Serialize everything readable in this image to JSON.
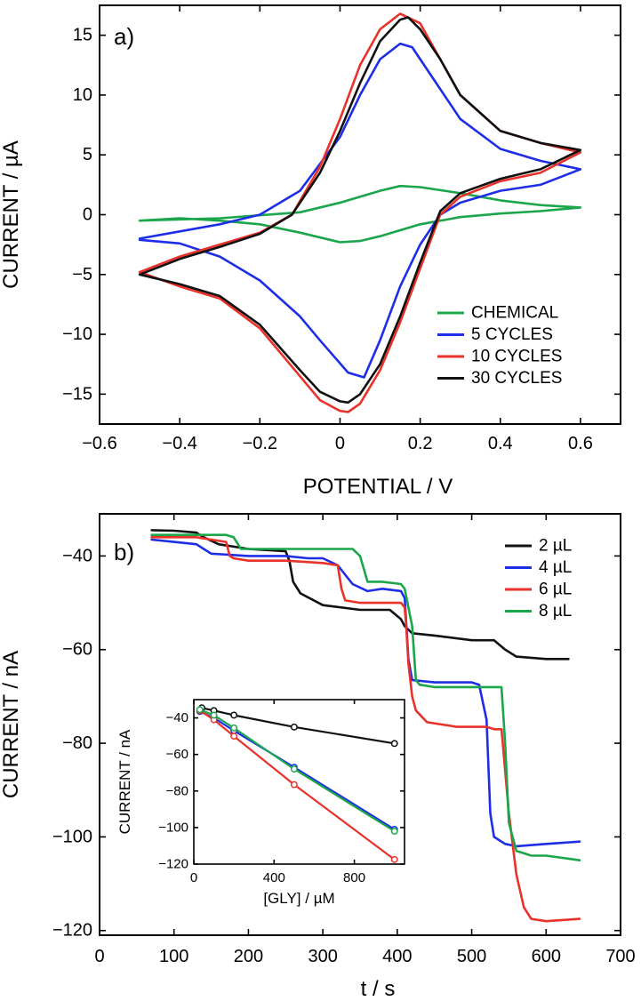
{
  "chart_data": [
    {
      "type": "line",
      "panel_label": "a)",
      "xlabel": "POTENTIAL / V",
      "ylabel": "CURRENT / µA",
      "xlim": [
        -0.6,
        0.7
      ],
      "ylim": [
        -17.5,
        17.5
      ],
      "xticks": [
        -0.6,
        -0.4,
        -0.2,
        0,
        0.2,
        0.4,
        0.6
      ],
      "yticks": [
        -15,
        -10,
        -5,
        0,
        5,
        10,
        15
      ],
      "xtick_labels": [
        "−0.6",
        "−0.4",
        "−0.2",
        "0",
        "0.2",
        "0.4",
        "0.6"
      ],
      "ytick_labels": [
        "−15",
        "−10",
        "−5",
        "0",
        "5",
        "10",
        "15"
      ],
      "legend_position": "lower-right",
      "series": [
        {
          "name": "CHEMICAL",
          "color": "#1ca64c",
          "x": [
            -0.5,
            -0.3,
            -0.1,
            0.0,
            0.1,
            0.15,
            0.2,
            0.3,
            0.4,
            0.5,
            0.6,
            0.5,
            0.4,
            0.3,
            0.2,
            0.1,
            0.05,
            0.0,
            -0.1,
            -0.2,
            -0.3,
            -0.4,
            -0.5
          ],
          "y": [
            -0.5,
            -0.3,
            0.2,
            1.0,
            2.0,
            2.4,
            2.3,
            1.8,
            1.2,
            0.8,
            0.6,
            0.3,
            0.1,
            -0.2,
            -0.8,
            -1.8,
            -2.2,
            -2.3,
            -1.5,
            -0.8,
            -0.5,
            -0.3,
            -0.5
          ]
        },
        {
          "name": "5 CYCLES",
          "color": "#1e2ee6",
          "x": [
            -0.5,
            -0.4,
            -0.3,
            -0.2,
            -0.1,
            0.0,
            0.05,
            0.1,
            0.15,
            0.18,
            0.22,
            0.3,
            0.4,
            0.5,
            0.6,
            0.5,
            0.4,
            0.3,
            0.25,
            0.2,
            0.15,
            0.1,
            0.06,
            0.02,
            -0.05,
            -0.1,
            -0.2,
            -0.3,
            -0.4,
            -0.5
          ],
          "y": [
            -2.0,
            -1.4,
            -0.8,
            0.0,
            2.0,
            6.5,
            10.0,
            13.0,
            14.3,
            14.0,
            12.0,
            8.0,
            5.5,
            4.5,
            3.8,
            2.5,
            2.0,
            1.0,
            0.0,
            -2.5,
            -6.0,
            -10.5,
            -13.6,
            -13.2,
            -10.5,
            -8.5,
            -5.5,
            -3.5,
            -2.4,
            -2.1
          ]
        },
        {
          "name": "10 CYCLES",
          "color": "#e8322a",
          "x": [
            -0.5,
            -0.4,
            -0.3,
            -0.2,
            -0.12,
            -0.05,
            0.0,
            0.05,
            0.1,
            0.15,
            0.2,
            0.25,
            0.3,
            0.4,
            0.5,
            0.6,
            0.5,
            0.4,
            0.3,
            0.25,
            0.2,
            0.15,
            0.1,
            0.05,
            0.02,
            0.0,
            -0.05,
            -0.1,
            -0.2,
            -0.3,
            -0.4,
            -0.5
          ],
          "y": [
            -4.8,
            -3.5,
            -2.5,
            -1.5,
            0.0,
            4.0,
            8.0,
            12.5,
            15.5,
            16.8,
            16.0,
            13.0,
            10.0,
            7.0,
            6.0,
            5.2,
            3.5,
            2.8,
            1.5,
            0.0,
            -4.5,
            -9.0,
            -13.0,
            -15.8,
            -16.5,
            -16.4,
            -15.5,
            -13.5,
            -9.5,
            -7.0,
            -6.0,
            -4.8
          ]
        },
        {
          "name": "30 CYCLES",
          "color": "#111111",
          "x": [
            -0.5,
            -0.4,
            -0.3,
            -0.2,
            -0.12,
            -0.05,
            0.0,
            0.05,
            0.1,
            0.15,
            0.17,
            0.2,
            0.25,
            0.3,
            0.4,
            0.5,
            0.6,
            0.5,
            0.4,
            0.3,
            0.25,
            0.2,
            0.15,
            0.1,
            0.05,
            0.02,
            0.0,
            -0.05,
            -0.1,
            -0.2,
            -0.3,
            -0.4,
            -0.5
          ],
          "y": [
            -5.0,
            -3.7,
            -2.7,
            -1.6,
            0.0,
            3.5,
            7.0,
            11.0,
            14.5,
            16.3,
            16.5,
            15.5,
            13.0,
            10.0,
            7.0,
            6.0,
            5.4,
            3.8,
            3.0,
            1.8,
            0.3,
            -4.0,
            -8.5,
            -12.5,
            -15.0,
            -15.7,
            -15.6,
            -14.8,
            -13.0,
            -9.2,
            -6.8,
            -5.8,
            -5.0
          ]
        }
      ]
    },
    {
      "type": "line",
      "panel_label": "b)",
      "xlabel": "t / s",
      "ylabel": "CURRENT / nA",
      "xlim": [
        0,
        700
      ],
      "ylim": [
        -121,
        -31
      ],
      "xticks": [
        0,
        100,
        200,
        300,
        400,
        500,
        600,
        700
      ],
      "yticks": [
        -40,
        -60,
        -80,
        -100,
        -120
      ],
      "xtick_labels": [
        "0",
        "100",
        "200",
        "300",
        "400",
        "500",
        "600",
        "700"
      ],
      "ytick_labels": [
        "−40",
        "−60",
        "−80",
        "−100",
        "−120"
      ],
      "legend_position": "top-right",
      "series": [
        {
          "name": "2 µL",
          "color": "#111111",
          "x": [
            70,
            100,
            130,
            140,
            160,
            200,
            250,
            255,
            260,
            270,
            300,
            350,
            390,
            405,
            410,
            420,
            450,
            500,
            530,
            545,
            560,
            600,
            630
          ],
          "y": [
            -34.5,
            -34.6,
            -35.0,
            -36.0,
            -37.5,
            -38.5,
            -39.0,
            -41.0,
            -45.5,
            -48.0,
            -50.5,
            -51.5,
            -51.5,
            -53.5,
            -55.0,
            -56.5,
            -57.0,
            -58.0,
            -58.0,
            -60.0,
            -61.5,
            -62.0,
            -62.0
          ]
        },
        {
          "name": "4 µL",
          "color": "#1e2ee6",
          "x": [
            70,
            100,
            130,
            140,
            150,
            200,
            250,
            280,
            300,
            320,
            340,
            360,
            380,
            405,
            410,
            415,
            420,
            450,
            500,
            510,
            520,
            525,
            530,
            545,
            560,
            600,
            645
          ],
          "y": [
            -36.5,
            -37.0,
            -37.5,
            -38.5,
            -39.5,
            -40.0,
            -40.0,
            -40.5,
            -40.5,
            -42.0,
            -46.0,
            -47.5,
            -47.0,
            -47.5,
            -49.0,
            -62.0,
            -66.5,
            -67.0,
            -67.0,
            -67.5,
            -75.0,
            -95.0,
            -100.0,
            -101.5,
            -102.0,
            -101.5,
            -101.0
          ]
        },
        {
          "name": "6 µL",
          "color": "#e8322a",
          "x": [
            70,
            100,
            130,
            150,
            170,
            175,
            180,
            200,
            250,
            300,
            320,
            325,
            330,
            350,
            380,
            405,
            410,
            412,
            415,
            420,
            425,
            440,
            480,
            520,
            530,
            540,
            550,
            560,
            570,
            580,
            600,
            645
          ],
          "y": [
            -36.0,
            -36.0,
            -36.0,
            -36.5,
            -37.0,
            -40.0,
            -40.5,
            -41.0,
            -41.0,
            -41.5,
            -42.0,
            -47.0,
            -49.5,
            -50.0,
            -50.0,
            -50.0,
            -51.0,
            -55.0,
            -63.0,
            -70.0,
            -73.0,
            -75.5,
            -76.5,
            -76.5,
            -77.0,
            -77.0,
            -95.0,
            -108.0,
            -115.0,
            -117.5,
            -118.0,
            -117.5
          ]
        },
        {
          "name": "8 µL",
          "color": "#1ca64c",
          "x": [
            70,
            100,
            130,
            170,
            180,
            190,
            200,
            250,
            300,
            340,
            350,
            360,
            380,
            405,
            410,
            420,
            425,
            430,
            450,
            500,
            540,
            545,
            550,
            560,
            570,
            580,
            600,
            645
          ],
          "y": [
            -35.5,
            -35.5,
            -35.5,
            -35.5,
            -36.0,
            -38.5,
            -38.5,
            -38.5,
            -38.5,
            -38.5,
            -40.0,
            -45.5,
            -45.5,
            -46.0,
            -47.0,
            -55.0,
            -66.5,
            -67.5,
            -68.0,
            -68.0,
            -68.0,
            -80.0,
            -97.0,
            -103.0,
            -103.5,
            -104.0,
            -104.0,
            -105.0
          ]
        }
      ],
      "inset": {
        "xlabel": "[GLY] / µM",
        "ylabel": "CURRENT / nA",
        "xlim": [
          0,
          1050
        ],
        "ylim": [
          -120,
          -30
        ],
        "xticks": [
          0,
          400,
          800
        ],
        "yticks": [
          -40,
          -60,
          -80,
          -100,
          -120
        ],
        "xtick_labels": [
          "0",
          "400",
          "800"
        ],
        "ytick_labels": [
          "−40",
          "−60",
          "−80",
          "−100",
          "−120"
        ],
        "series": [
          {
            "name": "2 µL",
            "color": "#111111",
            "x": [
              40,
              100,
              200,
              500,
              1000
            ],
            "y": [
              -34.5,
              -36.0,
              -38.5,
              -45.0,
              -54.0
            ]
          },
          {
            "name": "4 µL",
            "color": "#1e2ee6",
            "x": [
              30,
              100,
              200,
              500,
              1000
            ],
            "y": [
              -36.5,
              -40.0,
              -47.0,
              -67.0,
              -101.0
            ]
          },
          {
            "name": "6 µL",
            "color": "#e8322a",
            "x": [
              30,
              100,
              200,
              500,
              1000
            ],
            "y": [
              -36.0,
              -41.0,
              -50.0,
              -76.5,
              -117.5
            ]
          },
          {
            "name": "8 µL",
            "color": "#1ca64c",
            "x": [
              30,
              100,
              200,
              500,
              1000
            ],
            "y": [
              -35.5,
              -38.5,
              -45.5,
              -68.0,
              -102.0
            ]
          }
        ]
      }
    }
  ]
}
